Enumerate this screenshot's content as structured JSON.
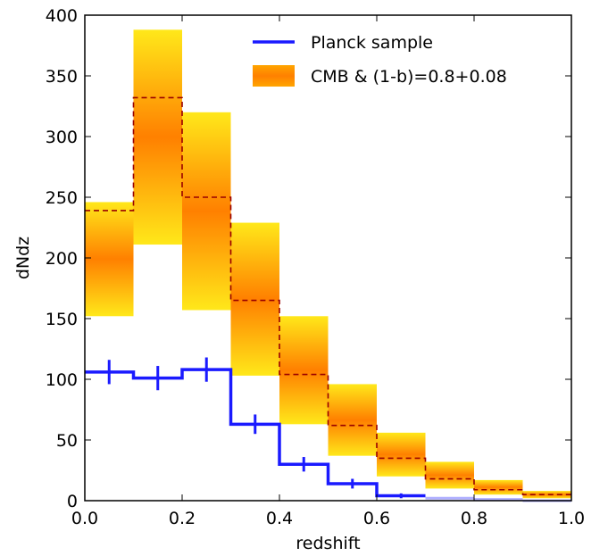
{
  "chart_data": {
    "type": "bar",
    "xlabel": "redshift",
    "ylabel": "dNdz",
    "xlim": [
      0.0,
      1.0
    ],
    "ylim": [
      0,
      400
    ],
    "grid": false,
    "legend_position": "top-right",
    "x_ticks": [
      "0.0",
      "0.2",
      "0.4",
      "0.6",
      "0.8",
      "1.0"
    ],
    "y_ticks": [
      "0",
      "50",
      "100",
      "150",
      "200",
      "250",
      "300",
      "350",
      "400"
    ],
    "bin_edges": [
      0.0,
      0.1,
      0.2,
      0.3,
      0.4,
      0.5,
      0.6,
      0.7,
      0.8,
      0.9,
      1.0
    ],
    "series": [
      {
        "name": "Planck sample",
        "kind": "step",
        "color": "#1a1aff",
        "values": [
          106,
          101,
          108,
          63,
          30,
          14,
          4,
          2,
          1,
          0
        ],
        "errors": [
          10,
          10,
          10,
          8,
          6,
          4,
          2,
          0,
          0,
          0
        ]
      },
      {
        "name": "CMB & (1-b)=0.8+0.08",
        "kind": "band",
        "color_center": "#ff8000",
        "color_edge": "#ffe81a",
        "mean_color": "#990000",
        "mean": [
          239,
          332,
          250,
          165,
          104,
          62,
          35,
          18,
          9,
          5
        ],
        "lower": [
          152,
          211,
          157,
          103,
          63,
          37,
          20,
          10,
          5,
          2
        ],
        "upper": [
          246,
          388,
          320,
          229,
          152,
          96,
          56,
          32,
          17,
          8
        ]
      }
    ]
  }
}
